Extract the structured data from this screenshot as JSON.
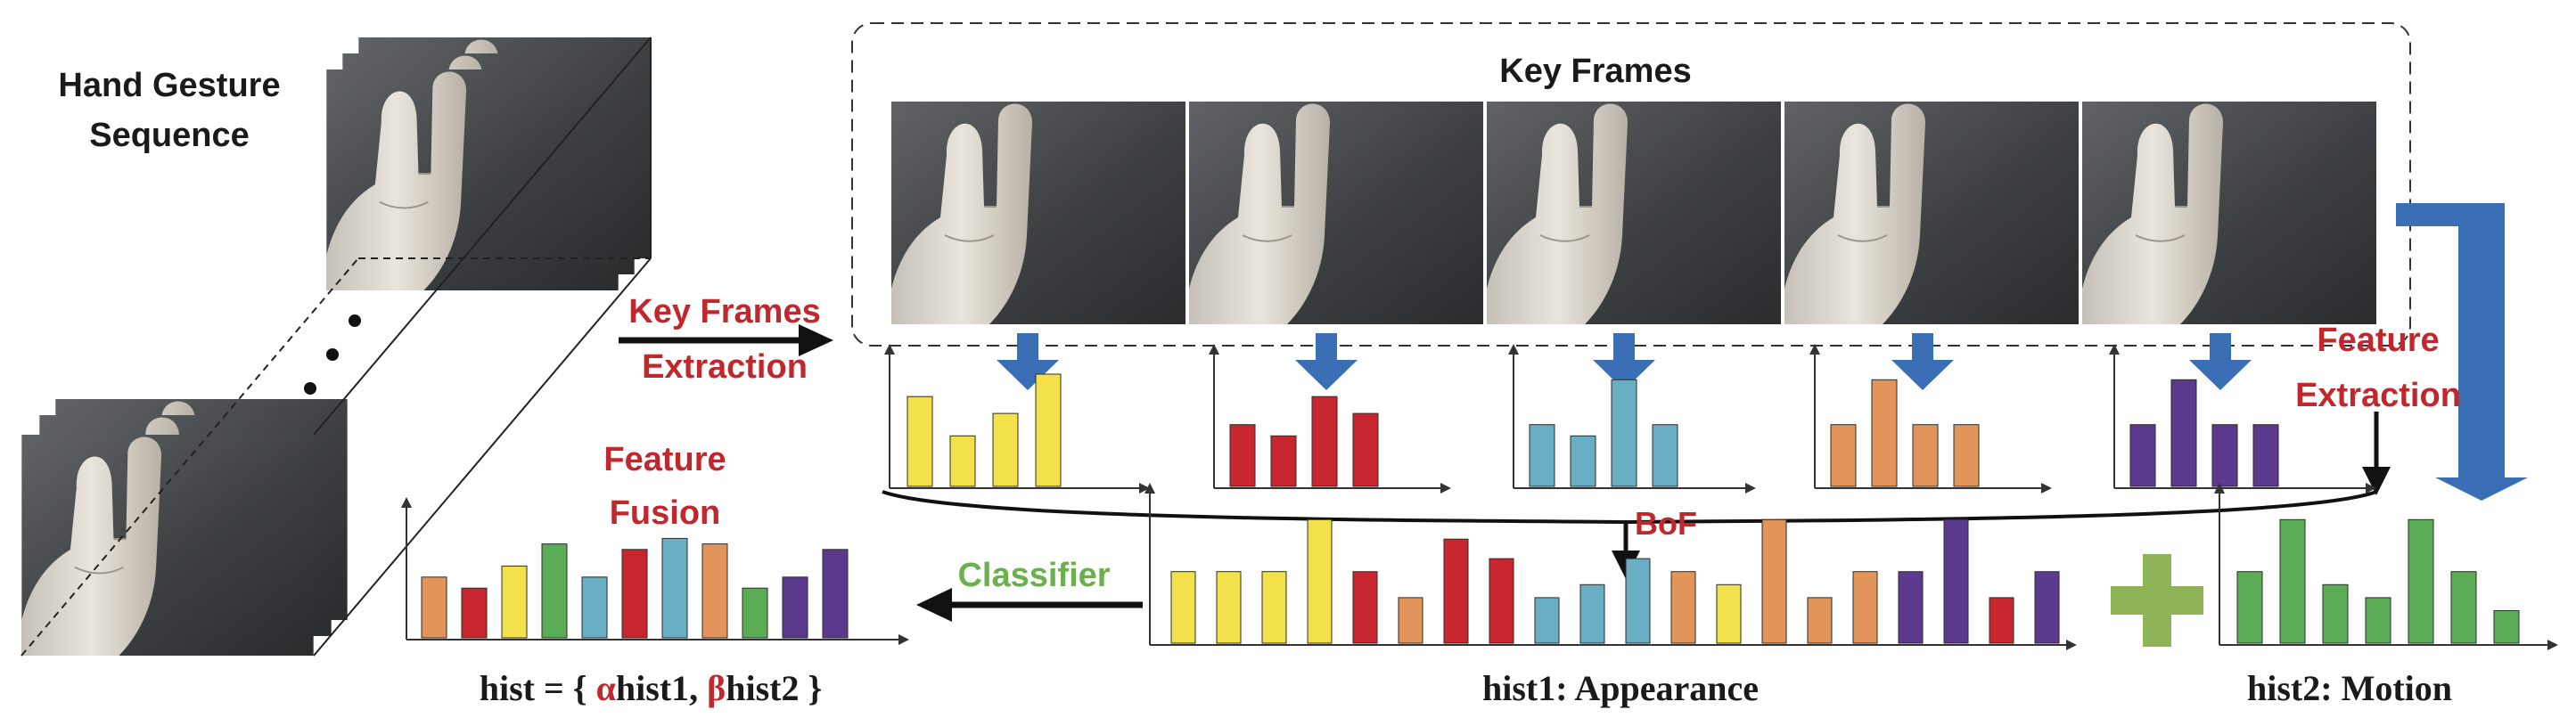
{
  "labels": {
    "sequence_line1": "Hand Gesture",
    "sequence_line2": "Sequence",
    "key_frames_title": "Key Frames",
    "kf_extraction_line1": "Key Frames",
    "kf_extraction_line2": "Extraction",
    "feature_extraction_line1": "Feature",
    "feature_extraction_line2": "Extraction",
    "feature_fusion_line1": "Feature",
    "feature_fusion_line2": "Fusion",
    "bof": "BoF",
    "classifier": "Classifier",
    "hist1_caption": "hist1: Appearance",
    "hist2_caption": "hist2: Motion",
    "fusion_formula_open": "hist = { ",
    "fusion_alpha": "α",
    "fusion_mid": "hist1, ",
    "fusion_beta": "β",
    "fusion_close": "hist2 }",
    "plus_symbol": "+"
  },
  "colors": {
    "red_label": "#c0282d",
    "green_label": "#6ab04c",
    "arrow_blue": "#3a6fb5",
    "plus_green": "#8fb357",
    "bar_yellow": "#f2e14a",
    "bar_red": "#c8262e",
    "bar_cyan": "#6aaec4",
    "bar_orange": "#e2955a",
    "bar_purple": "#5b3a8e",
    "bar_green": "#5aad55"
  },
  "chart_data": [
    {
      "type": "bar",
      "name": "keyframe-hist-1",
      "values": [
        0.8,
        0.45,
        0.65,
        1.0
      ],
      "color": "bar_yellow"
    },
    {
      "type": "bar",
      "name": "keyframe-hist-2",
      "values": [
        0.55,
        0.45,
        0.8,
        0.65
      ],
      "color": "bar_red"
    },
    {
      "type": "bar",
      "name": "keyframe-hist-3",
      "values": [
        0.55,
        0.45,
        0.95,
        0.55
      ],
      "color": "bar_cyan"
    },
    {
      "type": "bar",
      "name": "keyframe-hist-4",
      "values": [
        0.55,
        0.95,
        0.55,
        0.55
      ],
      "color": "bar_orange"
    },
    {
      "type": "bar",
      "name": "keyframe-hist-5",
      "values": [
        0.55,
        0.95,
        0.55,
        0.55
      ],
      "color": "bar_purple"
    },
    {
      "type": "bar",
      "name": "hist1-appearance",
      "values": [
        0.55,
        0.55,
        0.55,
        0.95,
        0.55,
        0.35,
        0.8,
        0.65,
        0.35,
        0.45,
        0.65,
        0.55,
        0.45,
        0.95,
        0.35,
        0.55,
        0.55,
        0.95,
        0.35,
        0.55
      ],
      "colors": [
        "bar_yellow",
        "bar_yellow",
        "bar_yellow",
        "bar_yellow",
        "bar_red",
        "bar_orange",
        "bar_red",
        "bar_red",
        "bar_cyan",
        "bar_cyan",
        "bar_cyan",
        "bar_orange",
        "bar_yellow",
        "bar_orange",
        "bar_orange",
        "bar_orange",
        "bar_purple",
        "bar_purple",
        "bar_red",
        "bar_purple"
      ]
    },
    {
      "type": "bar",
      "name": "hist2-motion",
      "values": [
        0.55,
        0.95,
        0.45,
        0.35,
        0.95,
        0.55,
        0.25
      ],
      "color": "bar_green"
    },
    {
      "type": "bar",
      "name": "fused-hist",
      "values": [
        0.55,
        0.45,
        0.65,
        0.85,
        0.55,
        0.8,
        0.9,
        0.85,
        0.45,
        0.55,
        0.8
      ],
      "colors": [
        "bar_orange",
        "bar_red",
        "bar_yellow",
        "bar_green",
        "bar_cyan",
        "bar_red",
        "bar_cyan",
        "bar_orange",
        "bar_green",
        "bar_purple",
        "bar_purple"
      ]
    }
  ]
}
